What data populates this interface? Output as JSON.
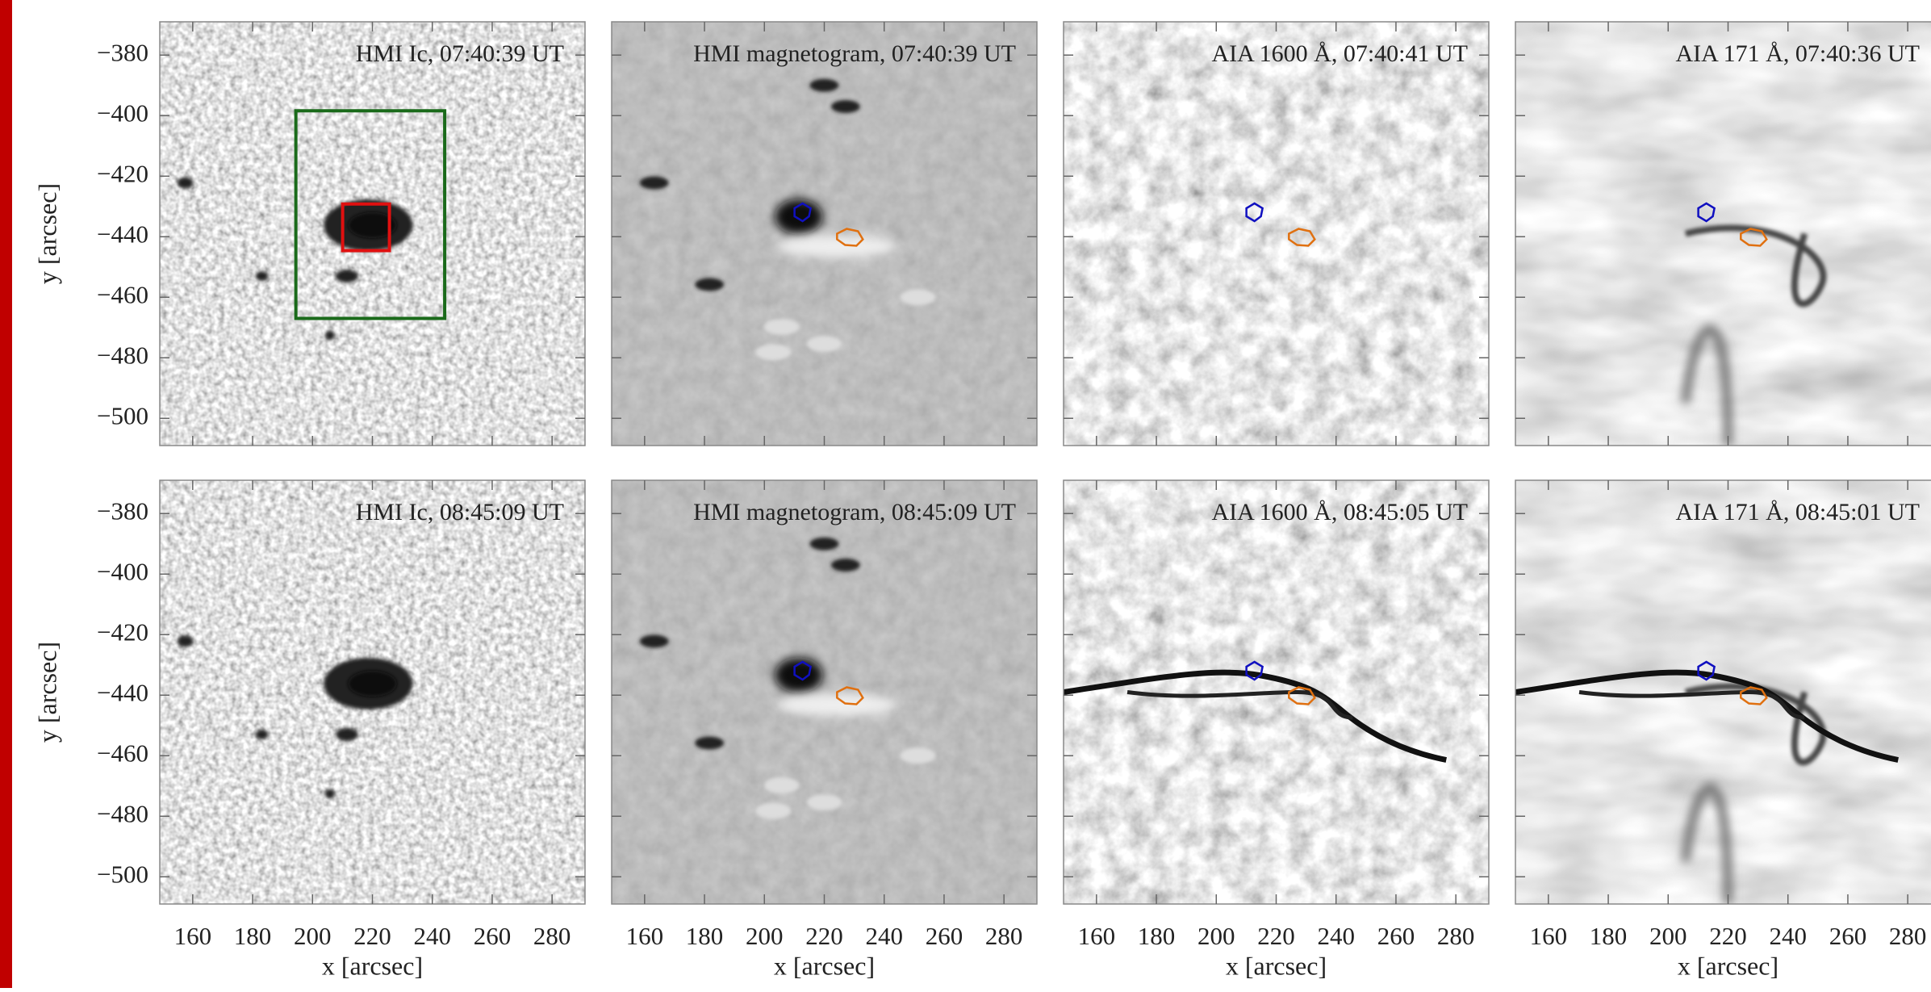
{
  "chart_data": [
    {
      "type": "image",
      "title": "HMI Ic, 07:40:39 UT",
      "xlim": [
        149,
        291
      ],
      "ylim": [
        -509,
        -369
      ],
      "xticks": [
        160,
        180,
        200,
        220,
        240,
        260,
        280
      ],
      "yticks": [
        {
          "value": -380,
          "label": "−380"
        },
        {
          "value": -400,
          "label": "−400"
        },
        {
          "value": -420,
          "label": "−420"
        },
        {
          "value": -440,
          "label": "−440"
        },
        {
          "value": -460,
          "label": "−460"
        },
        {
          "value": -480,
          "label": "−480"
        },
        {
          "value": -500,
          "label": "−500"
        }
      ],
      "ylabel": "y [arcsec]"
    },
    {
      "type": "image",
      "title": "HMI magnetogram, 07:40:39 UT",
      "xlim": [
        149,
        291
      ],
      "ylim": [
        -509,
        -369
      ],
      "xticks": [
        160,
        180,
        200,
        220,
        240,
        260,
        280
      ],
      "yticks": [
        {
          "value": -380,
          "label": "−380"
        },
        {
          "value": -400,
          "label": "−400"
        },
        {
          "value": -420,
          "label": "−420"
        },
        {
          "value": -440,
          "label": "−440"
        },
        {
          "value": -460,
          "label": "−460"
        },
        {
          "value": -480,
          "label": "−480"
        },
        {
          "value": -500,
          "label": "−500"
        }
      ]
    },
    {
      "type": "image",
      "title": "AIA 1600 Å, 07:40:41 UT",
      "xlim": [
        149,
        291
      ],
      "ylim": [
        -509,
        -369
      ],
      "xticks": [
        160,
        180,
        200,
        220,
        240,
        260,
        280
      ],
      "yticks": [
        {
          "value": -380,
          "label": "−380"
        },
        {
          "value": -400,
          "label": "−400"
        },
        {
          "value": -420,
          "label": "−420"
        },
        {
          "value": -440,
          "label": "−440"
        },
        {
          "value": -460,
          "label": "−460"
        },
        {
          "value": -480,
          "label": "−480"
        },
        {
          "value": -500,
          "label": "−500"
        }
      ]
    },
    {
      "type": "image",
      "title": "AIA 171 Å, 07:40:36 UT",
      "xlim": [
        149,
        291
      ],
      "ylim": [
        -509,
        -369
      ],
      "xticks": [
        160,
        180,
        200,
        220,
        240,
        260,
        280
      ],
      "yticks": [
        {
          "value": -380,
          "label": "−380"
        },
        {
          "value": -400,
          "label": "−400"
        },
        {
          "value": -420,
          "label": "−420"
        },
        {
          "value": -440,
          "label": "−440"
        },
        {
          "value": -460,
          "label": "−460"
        },
        {
          "value": -480,
          "label": "−480"
        },
        {
          "value": -500,
          "label": "−500"
        }
      ]
    },
    {
      "type": "image",
      "title": "HMI Ic, 08:45:09 UT",
      "xlim": [
        149,
        291
      ],
      "ylim": [
        -509,
        -369
      ],
      "xticks": [
        160,
        180,
        200,
        220,
        240,
        260,
        280
      ],
      "yticks": [
        {
          "value": -380,
          "label": "−380"
        },
        {
          "value": -400,
          "label": "−400"
        },
        {
          "value": -420,
          "label": "−420"
        },
        {
          "value": -440,
          "label": "−440"
        },
        {
          "value": -460,
          "label": "−460"
        },
        {
          "value": -480,
          "label": "−480"
        },
        {
          "value": -500,
          "label": "−500"
        }
      ],
      "ylabel": "y [arcsec]",
      "xlabel": "x [arcsec]"
    },
    {
      "type": "image",
      "title": "HMI magnetogram, 08:45:09 UT",
      "xlim": [
        149,
        291
      ],
      "ylim": [
        -509,
        -369
      ],
      "xticks": [
        160,
        180,
        200,
        220,
        240,
        260,
        280
      ],
      "yticks": [
        {
          "value": -380,
          "label": "−380"
        },
        {
          "value": -400,
          "label": "−400"
        },
        {
          "value": -420,
          "label": "−420"
        },
        {
          "value": -440,
          "label": "−440"
        },
        {
          "value": -460,
          "label": "−460"
        },
        {
          "value": -480,
          "label": "−480"
        },
        {
          "value": -500,
          "label": "−500"
        }
      ],
      "xlabel": "x [arcsec]"
    },
    {
      "type": "image",
      "title": "AIA 1600 Å, 08:45:05 UT",
      "xlim": [
        149,
        291
      ],
      "ylim": [
        -509,
        -369
      ],
      "xticks": [
        160,
        180,
        200,
        220,
        240,
        260,
        280
      ],
      "yticks": [
        {
          "value": -380,
          "label": "−380"
        },
        {
          "value": -400,
          "label": "−400"
        },
        {
          "value": -420,
          "label": "−420"
        },
        {
          "value": -440,
          "label": "−440"
        },
        {
          "value": -460,
          "label": "−460"
        },
        {
          "value": -480,
          "label": "−480"
        },
        {
          "value": -500,
          "label": "−500"
        }
      ],
      "xlabel": "x [arcsec]"
    },
    {
      "type": "image",
      "title": "AIA 171 Å, 08:45:01 UT",
      "xlim": [
        149,
        291
      ],
      "ylim": [
        -509,
        -369
      ],
      "xticks": [
        160,
        180,
        200,
        220,
        240,
        260,
        280
      ],
      "yticks": [
        {
          "value": -380,
          "label": "−380"
        },
        {
          "value": -400,
          "label": "−400"
        },
        {
          "value": -420,
          "label": "−420"
        },
        {
          "value": -440,
          "label": "−440"
        },
        {
          "value": -460,
          "label": "−460"
        },
        {
          "value": -480,
          "label": "−480"
        },
        {
          "value": -500,
          "label": "−500"
        }
      ],
      "xlabel": "x [arcsec]"
    }
  ]
}
